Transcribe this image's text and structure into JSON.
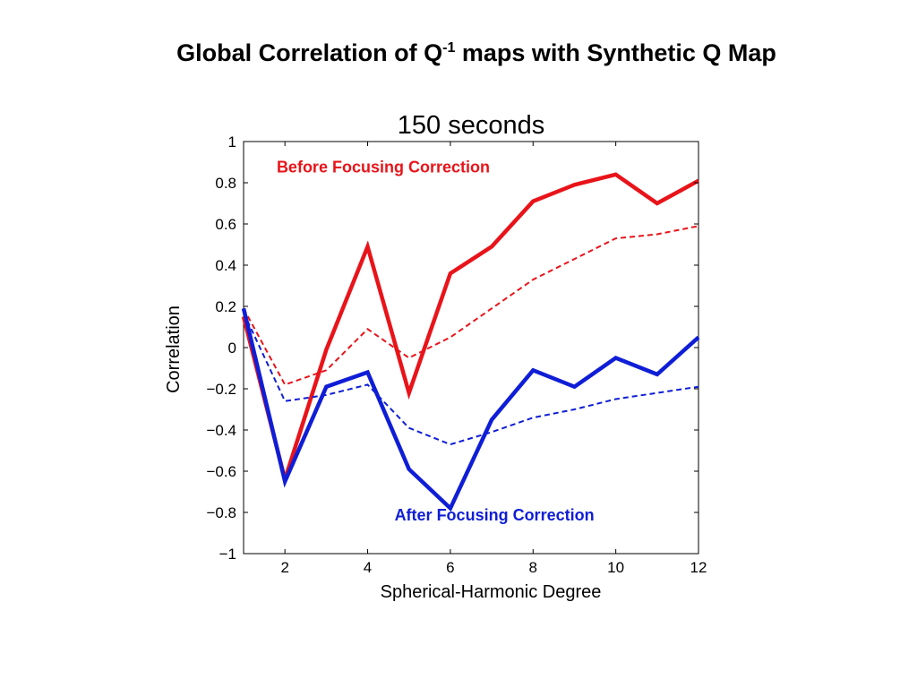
{
  "slide": {
    "title_main": "Global Correlation of Q",
    "title_sup": "-1",
    "title_rest": " maps with Synthetic Q Map"
  },
  "chart_data": {
    "type": "line",
    "title": "150 seconds",
    "xlabel": "Spherical-Harmonic Degree",
    "ylabel": "Correlation",
    "xlim": [
      1,
      12
    ],
    "ylim": [
      -1,
      1
    ],
    "xticks": [
      2,
      4,
      6,
      8,
      10,
      12
    ],
    "yticks": [
      -1,
      -0.8,
      -0.6,
      -0.4,
      -0.2,
      0,
      0.2,
      0.4,
      0.6,
      0.8,
      1
    ],
    "grid": false,
    "annotations": [
      {
        "text": "Before Focusing Correction",
        "color": "#e8141a",
        "x": 1.8,
        "y": 0.85
      },
      {
        "text": "After Focusing Correction",
        "color": "#0f1ed6",
        "x": 4.65,
        "y": -0.84
      }
    ],
    "series": [
      {
        "color": "#e8141a",
        "style": "solid",
        "x": [
          1,
          2,
          3,
          4,
          5,
          6,
          7,
          8,
          9,
          10,
          11,
          12
        ],
        "values": [
          0.15,
          -0.64,
          -0.01,
          0.49,
          -0.22,
          0.36,
          0.49,
          0.71,
          0.79,
          0.84,
          0.7,
          0.81
        ]
      },
      {
        "color": "#e8141a",
        "style": "dashed",
        "x": [
          1,
          2,
          3,
          4,
          5,
          6,
          7,
          8,
          9,
          10,
          11,
          12
        ],
        "values": [
          0.19,
          -0.18,
          -0.11,
          0.09,
          -0.05,
          0.05,
          0.19,
          0.33,
          0.43,
          0.53,
          0.55,
          0.59
        ]
      },
      {
        "color": "#0f1ed6",
        "style": "solid",
        "x": [
          1,
          2,
          3,
          4,
          5,
          6,
          7,
          8,
          9,
          10,
          11,
          12
        ],
        "values": [
          0.19,
          -0.65,
          -0.19,
          -0.12,
          -0.59,
          -0.78,
          -0.35,
          -0.11,
          -0.19,
          -0.05,
          -0.13,
          0.05
        ]
      },
      {
        "color": "#0f1ed6",
        "style": "dashed",
        "x": [
          1,
          2,
          3,
          4,
          5,
          6,
          7,
          8,
          9,
          10,
          11,
          12
        ],
        "values": [
          0.17,
          -0.26,
          -0.23,
          -0.18,
          -0.39,
          -0.47,
          -0.41,
          -0.34,
          -0.3,
          -0.25,
          -0.22,
          -0.19
        ]
      }
    ]
  }
}
